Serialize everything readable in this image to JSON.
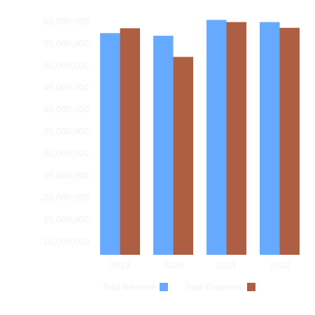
{
  "chart_data": {
    "type": "bar",
    "categories": [
      "2019",
      "2020",
      "2021",
      "2022"
    ],
    "series": [
      {
        "name": "Total Revenue",
        "color": "#66aaff",
        "values": [
          57300000,
          56700000,
          60300000,
          59800000
        ]
      },
      {
        "name": "Total Expenses",
        "color": "#ae5e42",
        "values": [
          58400000,
          51900000,
          59800000,
          58500000
        ]
      }
    ],
    "y_ticks": [
      "10,000,000",
      "15,000,000",
      "20,000,000",
      "25,000,000",
      "30,000,000",
      "35,000,000",
      "40,000,000",
      "45,000,000",
      "50,000,000",
      "55,000,000",
      "60,000,000"
    ],
    "ylim": [
      7000000,
      61000000
    ],
    "title": "",
    "xlabel": "",
    "ylabel": "",
    "grid": false,
    "legend_position": "bottom"
  }
}
